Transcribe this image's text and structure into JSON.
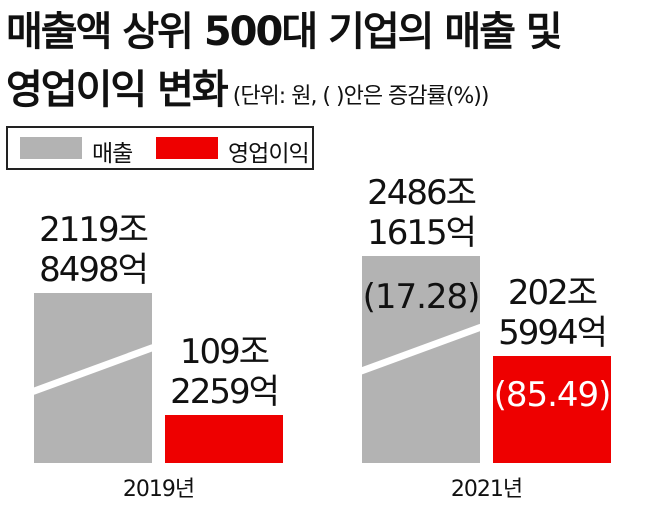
{
  "title": {
    "line1": "매출액 상위 500대 기업의 매출 및",
    "line2": "영업이익 변화",
    "unit_note": "(단위: 원, (     )안은 증감률(%))"
  },
  "legend": [
    {
      "label": "매출",
      "color": "#b3b3b3"
    },
    {
      "label": "영업이익",
      "color": "#ee0000"
    }
  ],
  "chart_data": {
    "type": "bar",
    "categories": [
      "2019년",
      "2021년"
    ],
    "series": [
      {
        "name": "매출",
        "color": "#b3b3b3",
        "values_trillion_won": [
          2119.8498,
          2486.1615
        ],
        "labels": [
          [
            "2119조",
            "8498억"
          ],
          [
            "2486조",
            "1615억"
          ]
        ],
        "change_pct": [
          null,
          17.28
        ],
        "change_labels": [
          "",
          "(17.28)"
        ]
      },
      {
        "name": "영업이익",
        "color": "#ee0000",
        "values_trillion_won": [
          109.2259,
          202.5994
        ],
        "labels": [
          [
            "109조",
            "2259억"
          ],
          [
            "202조",
            "5994억"
          ]
        ],
        "change_pct": [
          null,
          85.49
        ],
        "change_labels": [
          "",
          "(85.49)"
        ]
      }
    ],
    "axis_break": true,
    "grid": false,
    "legend_position": "top-left"
  }
}
